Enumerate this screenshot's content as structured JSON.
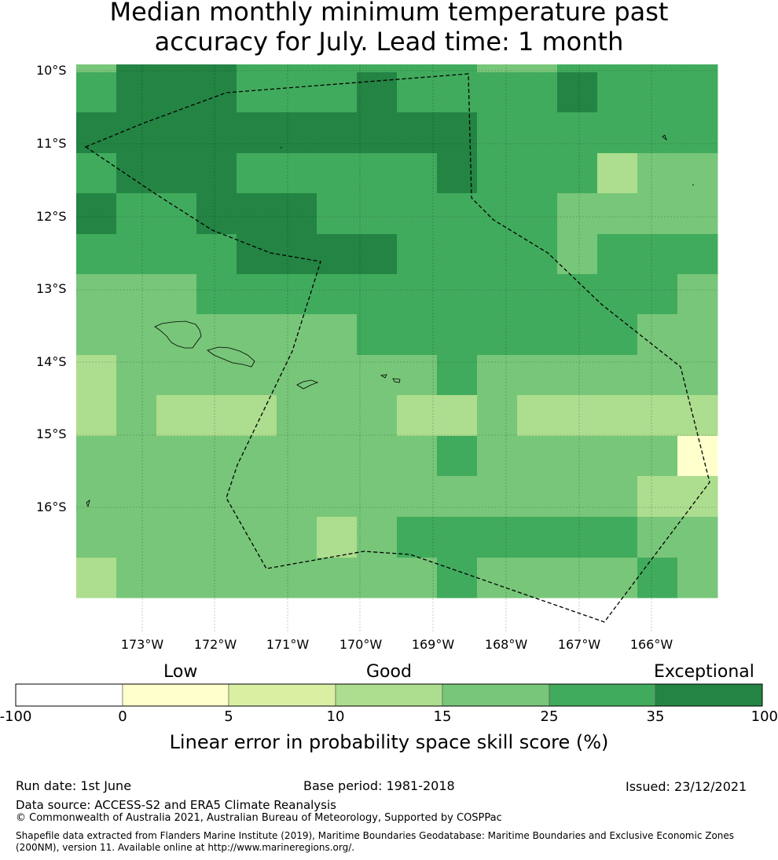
{
  "title": {
    "line1": "Median monthly minimum temperature past",
    "line2": "accuracy for July. Lead time: 1 month"
  },
  "map": {
    "lat_labels": [
      "10°S",
      "11°S",
      "12°S",
      "13°S",
      "14°S",
      "15°S",
      "16°S"
    ],
    "lon_labels": [
      "173°W",
      "172°W",
      "171°W",
      "170°W",
      "169°W",
      "168°W",
      "167°W",
      "166°W"
    ],
    "grid_lines": true,
    "boundary_style": "dashed black"
  },
  "colorbar": {
    "categories": [
      "Low",
      "Good",
      "Exceptional"
    ],
    "ticks": [
      "-100",
      "0",
      "5",
      "10",
      "15",
      "25",
      "35",
      "100"
    ],
    "colors": [
      "#ffffff",
      "#ffffcc",
      "#d9f0a3",
      "#addd8e",
      "#78c679",
      "#41ab5d",
      "#238443"
    ],
    "label": "Linear error in probability space skill score (%)"
  },
  "chart_data": {
    "type": "heatmap",
    "title": "Median monthly minimum temperature past accuracy for July. Lead time: 1 month",
    "value_label": "Linear error in probability space skill score (%)",
    "note": "Cell values are colour-class indices: 0 = <0, 1 = 0–5, 2 = 5–10, 3 = 10–15, 4 = 15–25, 5 = 25–35, 6 = 35–100; grid rows from north to south, columns from west to east",
    "bin_edges": [
      -100,
      0,
      5,
      10,
      15,
      25,
      35,
      100
    ],
    "grid": [
      [
        4,
        6,
        6,
        6,
        5,
        5,
        5,
        5,
        5,
        5,
        4,
        4,
        5,
        5,
        5,
        5
      ],
      [
        5,
        6,
        6,
        6,
        5,
        5,
        5,
        6,
        5,
        5,
        5,
        5,
        6,
        5,
        5,
        5
      ],
      [
        6,
        6,
        6,
        6,
        6,
        6,
        6,
        6,
        6,
        6,
        5,
        5,
        5,
        5,
        5,
        5
      ],
      [
        5,
        6,
        6,
        6,
        5,
        5,
        5,
        5,
        5,
        6,
        5,
        5,
        5,
        3,
        4,
        4
      ],
      [
        6,
        5,
        5,
        6,
        6,
        6,
        5,
        5,
        5,
        5,
        5,
        5,
        4,
        4,
        4,
        4
      ],
      [
        5,
        5,
        5,
        5,
        6,
        6,
        6,
        6,
        5,
        5,
        5,
        5,
        4,
        5,
        5,
        5
      ],
      [
        4,
        4,
        4,
        5,
        5,
        5,
        5,
        5,
        5,
        5,
        5,
        5,
        5,
        5,
        5,
        4
      ],
      [
        4,
        4,
        4,
        4,
        4,
        4,
        4,
        5,
        5,
        5,
        5,
        5,
        5,
        5,
        4,
        4
      ],
      [
        3,
        4,
        4,
        4,
        4,
        4,
        4,
        4,
        4,
        5,
        4,
        4,
        4,
        4,
        4,
        4
      ],
      [
        3,
        4,
        3,
        3,
        3,
        4,
        4,
        4,
        3,
        3,
        4,
        3,
        3,
        3,
        3,
        3
      ],
      [
        4,
        4,
        4,
        4,
        4,
        4,
        4,
        4,
        4,
        5,
        4,
        4,
        4,
        4,
        4,
        1
      ],
      [
        4,
        4,
        4,
        4,
        4,
        4,
        4,
        4,
        4,
        4,
        4,
        4,
        4,
        4,
        3,
        3
      ],
      [
        4,
        4,
        4,
        4,
        4,
        4,
        3,
        4,
        5,
        5,
        5,
        5,
        5,
        5,
        4,
        4
      ],
      [
        3,
        4,
        4,
        4,
        4,
        4,
        4,
        4,
        4,
        5,
        4,
        4,
        4,
        4,
        5,
        4
      ]
    ]
  },
  "footer": {
    "run_date": "Run date: 1st June",
    "base_period": "Base period: 1981-2018",
    "issued": "Issued: 23/12/2021",
    "data_source": "Data source: ACCESS-S2 and ERA5 Climate Reanalysis",
    "copyright": "© Commonwealth of Australia 2021, Australian Bureau of Meteorology, Supported by COSPPac",
    "shapefile": "Shapefile data extracted from Flanders Marine Institute (2019), Maritime Boundaries Geodatabase: Maritime Boundaries and Exclusive Economic Zones (200NM), version 11. Available online at http://www.marineregions.org/."
  }
}
